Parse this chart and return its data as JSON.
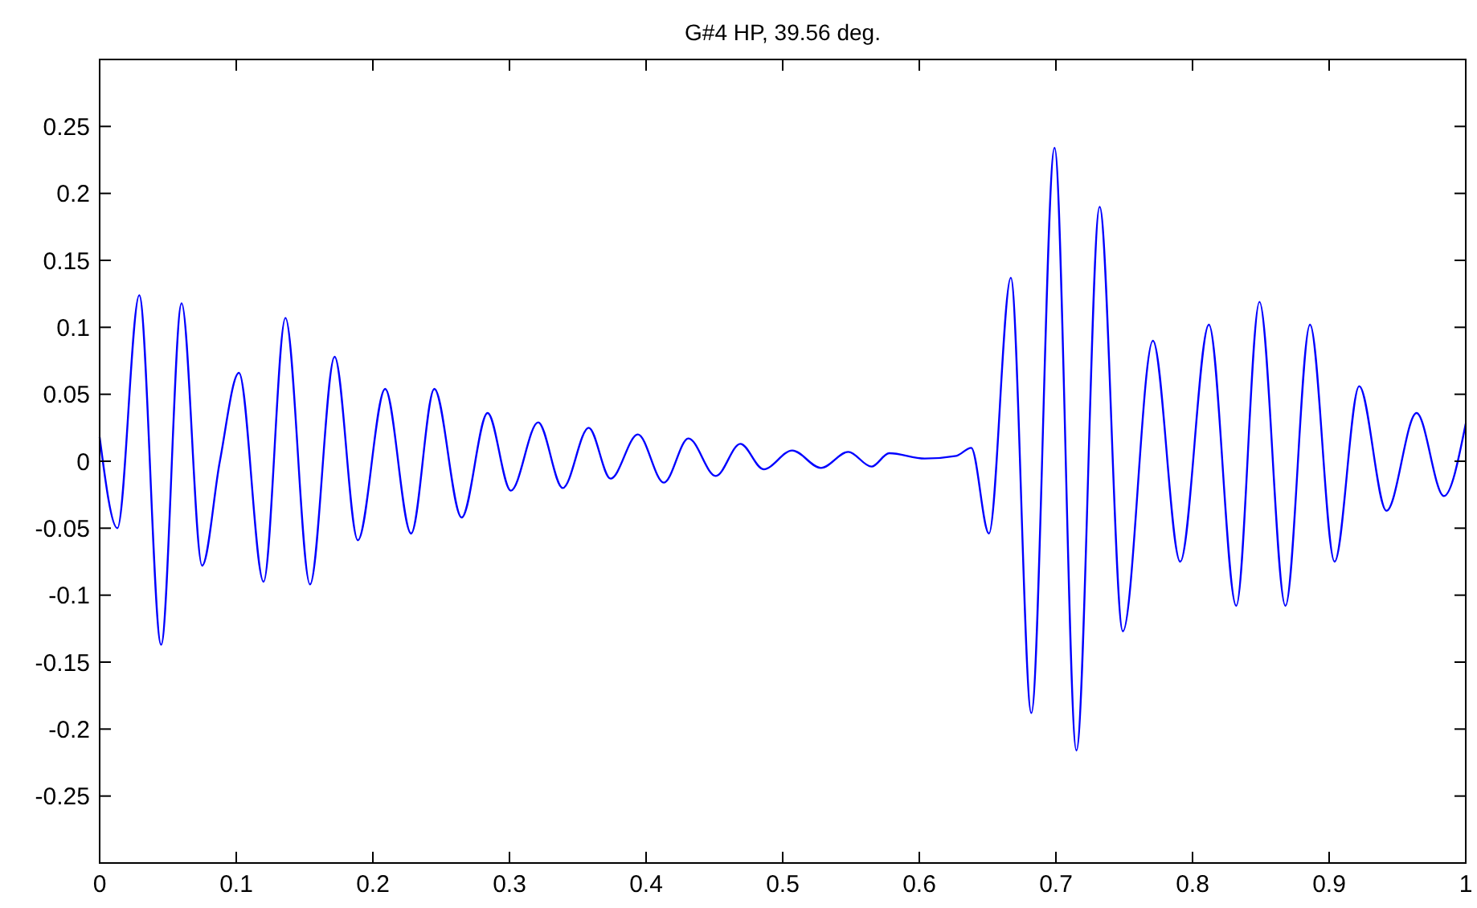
{
  "chart_data": {
    "type": "line",
    "title": "G#4 HP, 39.56 deg.",
    "x": [
      0,
      0.013,
      0.029,
      0.045,
      0.06,
      0.075,
      0.088,
      0.102,
      0.12,
      0.136,
      0.154,
      0.172,
      0.189,
      0.209,
      0.228,
      0.245,
      0.265,
      0.284,
      0.301,
      0.321,
      0.339,
      0.358,
      0.374,
      0.394,
      0.413,
      0.431,
      0.451,
      0.469,
      0.486,
      0.507,
      0.528,
      0.548,
      0.565,
      0.578,
      0.604,
      0.627,
      0.638,
      0.651,
      0.667,
      0.682,
      0.699,
      0.715,
      0.732,
      0.749,
      0.771,
      0.791,
      0.812,
      0.832,
      0.849,
      0.868,
      0.886,
      0.904,
      0.922,
      0.942,
      0.964,
      0.984,
      1
    ],
    "series": [
      {
        "color": "#0000ff",
        "values": [
          0.018,
          -0.05,
          0.124,
          -0.137,
          0.118,
          -0.078,
          0,
          0.066,
          -0.09,
          0.107,
          -0.092,
          0.078,
          -0.059,
          0.054,
          -0.054,
          0.054,
          -0.042,
          0.036,
          -0.022,
          0.029,
          -0.02,
          0.025,
          -0.013,
          0.02,
          -0.016,
          0.017,
          -0.011,
          0.013,
          -0.006,
          0.008,
          -0.005,
          0.007,
          -0.004,
          0.006,
          0.002,
          0.004,
          0.01,
          -0.054,
          0.137,
          -0.188,
          0.234,
          -0.216,
          0.19,
          -0.127,
          0.09,
          -0.075,
          0.102,
          -0.108,
          0.119,
          -0.108,
          0.102,
          -0.075,
          0.056,
          -0.037,
          0.036,
          -0.026,
          0.028
        ]
      }
    ],
    "xlim": [
      0,
      1
    ],
    "xticks": [
      0,
      0.1,
      0.2,
      0.3,
      0.4,
      0.5,
      0.6,
      0.7,
      0.8,
      0.9,
      1
    ],
    "ylim": [
      -0.3,
      0.3
    ],
    "yticks": [
      -0.25,
      -0.2,
      -0.15,
      -0.1,
      -0.05,
      0,
      0.05,
      0.1,
      0.15,
      0.2,
      0.25
    ],
    "grid": false,
    "line_style": "solid"
  }
}
